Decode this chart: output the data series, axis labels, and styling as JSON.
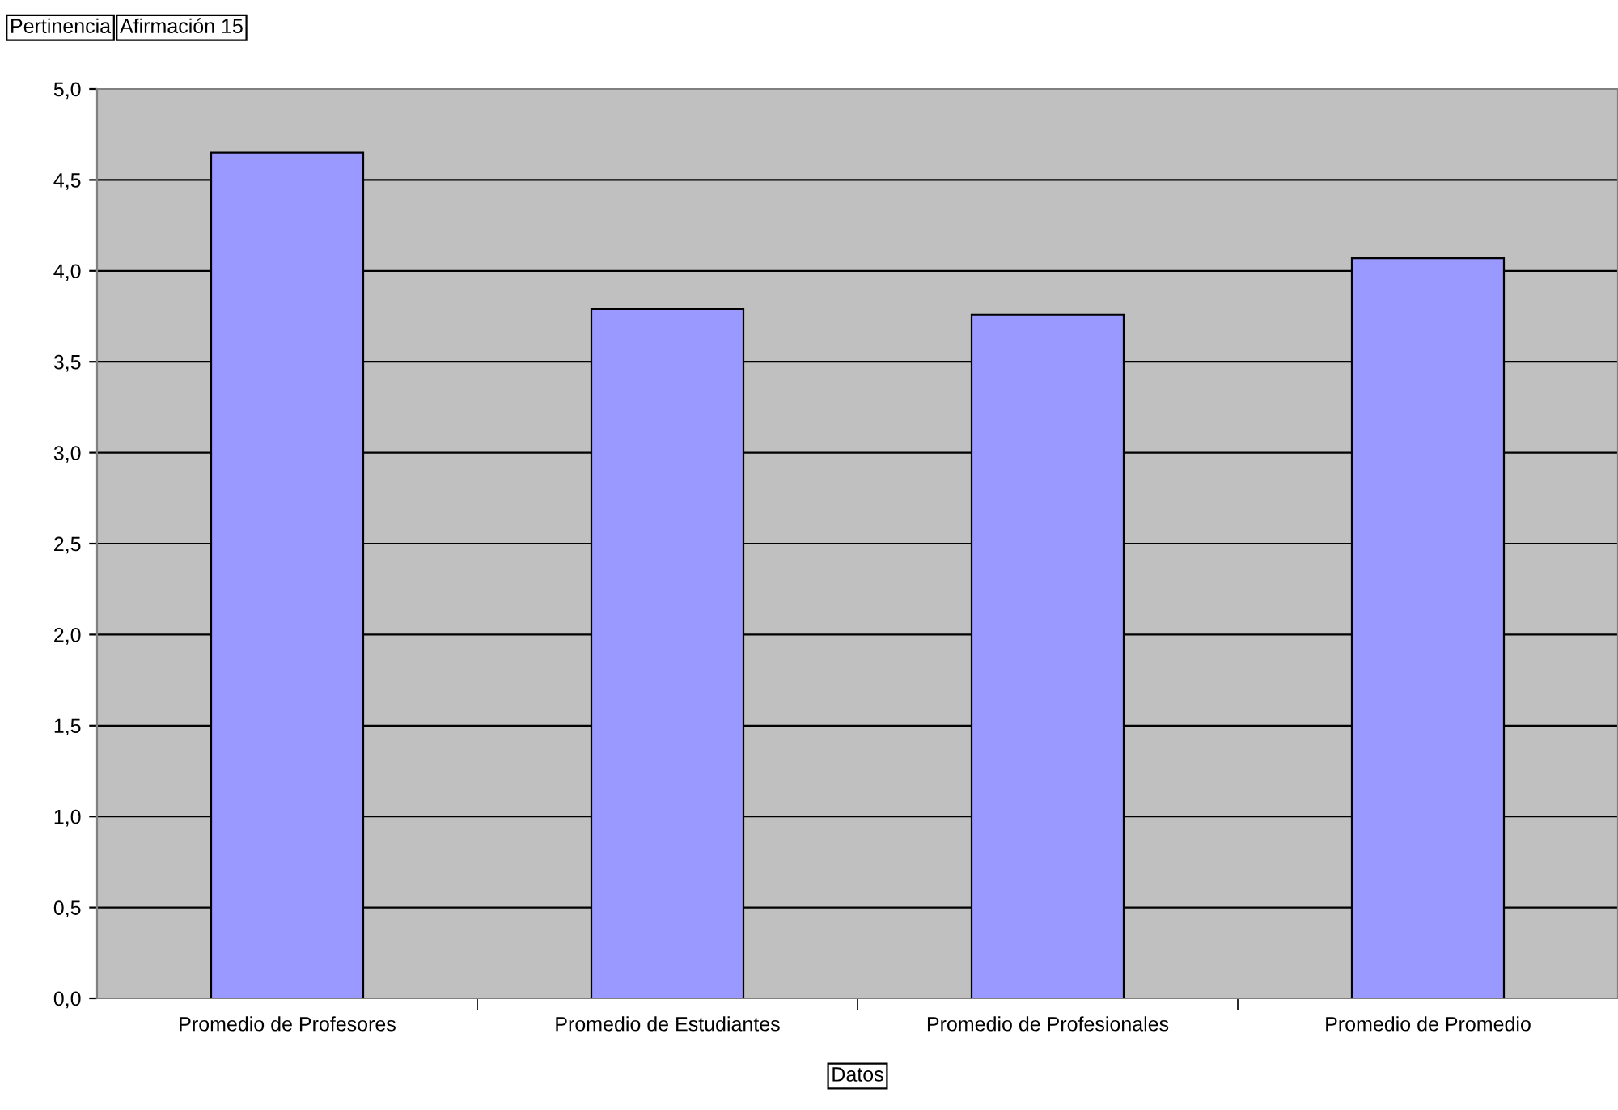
{
  "chart_data": {
    "type": "bar",
    "annotations": [
      "Pertinencia",
      "Afirmación 15"
    ],
    "xlabel": "Datos",
    "categories": [
      "Promedio de Profesores",
      "Promedio de Estudiantes",
      "Promedio de Profesionales",
      "Promedio de Promedio"
    ],
    "values": [
      4.65,
      3.79,
      3.76,
      4.07
    ],
    "color": "#9999ff",
    "ylim": [
      0,
      5
    ],
    "yticks": [
      {
        "value": 0,
        "label": "0,0"
      },
      {
        "value": 0.5,
        "label": "0,5"
      },
      {
        "value": 1,
        "label": "1,0"
      },
      {
        "value": 1.5,
        "label": "1,5"
      },
      {
        "value": 2,
        "label": "2,0"
      },
      {
        "value": 2.5,
        "label": "2,5"
      },
      {
        "value": 3,
        "label": "3,0"
      },
      {
        "value": 3.5,
        "label": "3,5"
      },
      {
        "value": 4,
        "label": "4,0"
      },
      {
        "value": 4.5,
        "label": "4,5"
      },
      {
        "value": 5,
        "label": "5,0"
      }
    ],
    "grid": "y",
    "legend": false
  }
}
